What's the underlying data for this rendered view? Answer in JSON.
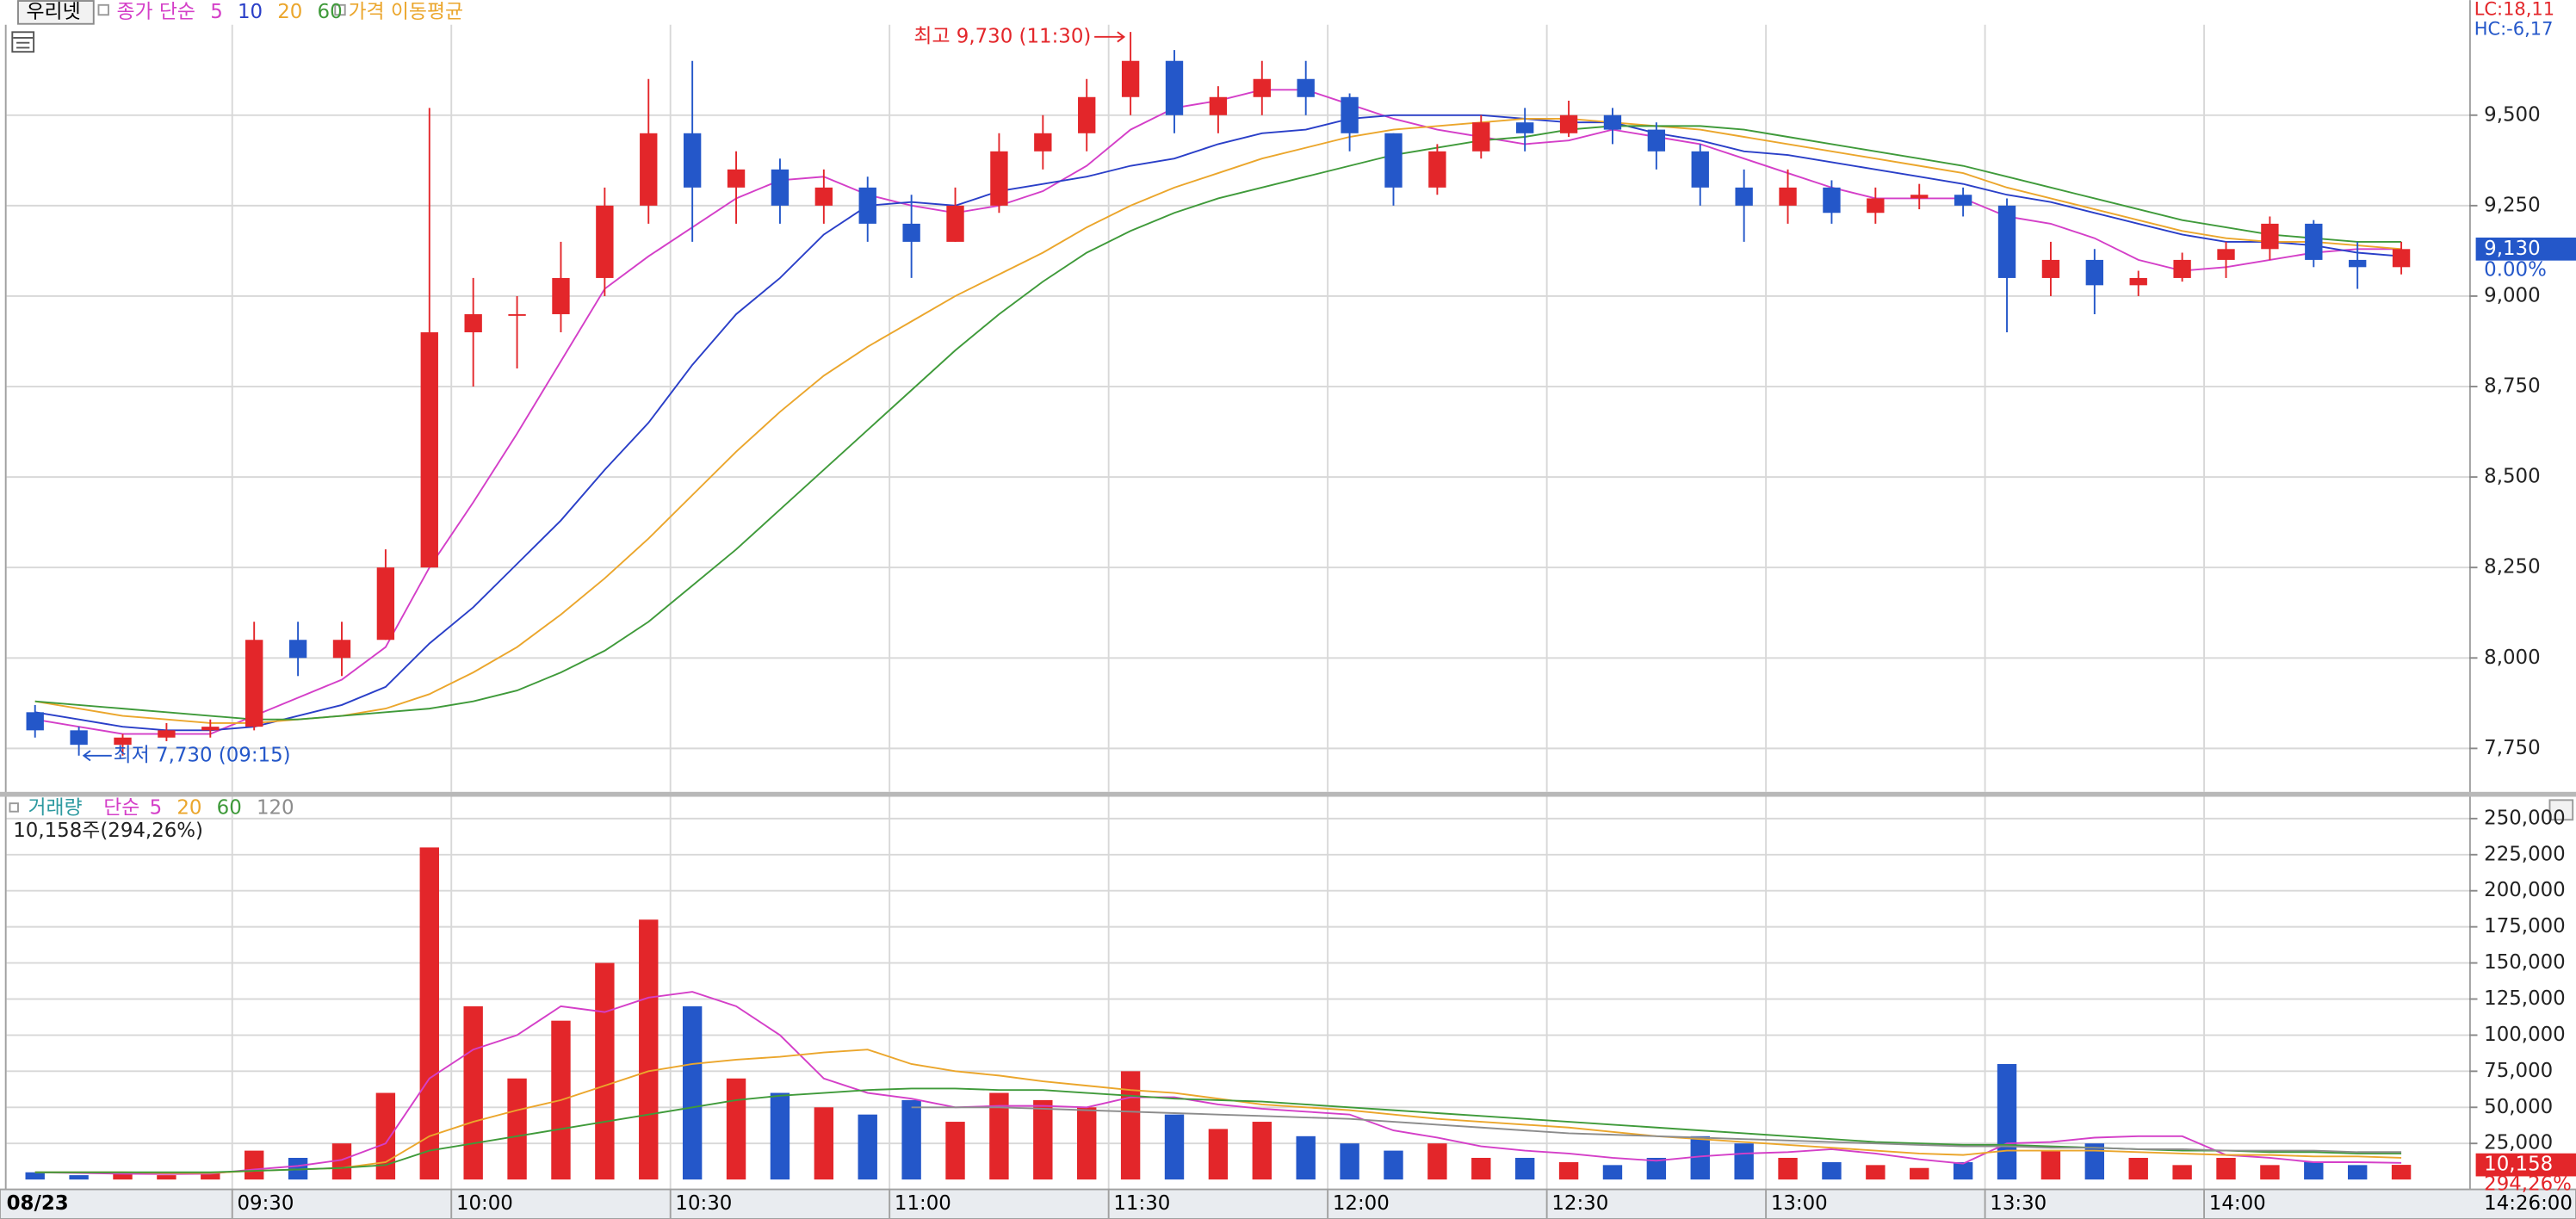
{
  "chart_data": [
    {
      "type": "candlestick",
      "title": "우리넷",
      "ma_label": "종가 단순",
      "ma_note": "가격 이동평균",
      "lc": "LC:18,11",
      "hc": "HC:-6,17",
      "x": [
        "09:00",
        "09:06",
        "09:12",
        "09:18",
        "09:24",
        "09:30",
        "09:36",
        "09:42",
        "09:48",
        "09:54",
        "10:00",
        "10:06",
        "10:12",
        "10:18",
        "10:24",
        "10:30",
        "10:36",
        "10:42",
        "10:48",
        "10:54",
        "11:00",
        "11:06",
        "11:12",
        "11:18",
        "11:24",
        "11:30",
        "11:36",
        "11:42",
        "11:48",
        "11:54",
        "12:00",
        "12:06",
        "12:12",
        "12:18",
        "12:24",
        "12:30",
        "12:36",
        "12:42",
        "12:48",
        "12:54",
        "13:00",
        "13:06",
        "13:12",
        "13:18",
        "13:24",
        "13:30",
        "13:36",
        "13:42",
        "13:48",
        "13:54",
        "14:00",
        "14:06",
        "14:12",
        "14:18",
        "14:24"
      ],
      "open": [
        7850,
        7800,
        7760,
        7780,
        7800,
        7810,
        8050,
        8000,
        8050,
        8250,
        8900,
        8950,
        8950,
        9050,
        9250,
        9450,
        9300,
        9350,
        9250,
        9300,
        9200,
        9150,
        9250,
        9400,
        9450,
        9550,
        9650,
        9500,
        9550,
        9600,
        9550,
        9450,
        9300,
        9400,
        9480,
        9450,
        9500,
        9460,
        9400,
        9300,
        9250,
        9300,
        9230,
        9270,
        9280,
        9250,
        9050,
        9100,
        9030,
        9050,
        9100,
        9130,
        9200,
        9100,
        9080
      ],
      "high": [
        7870,
        7810,
        7790,
        7820,
        7830,
        8100,
        8100,
        8100,
        8300,
        9520,
        9050,
        9000,
        9150,
        9300,
        9600,
        9650,
        9400,
        9380,
        9350,
        9330,
        9280,
        9300,
        9450,
        9500,
        9600,
        9730,
        9680,
        9580,
        9650,
        9650,
        9560,
        9450,
        9420,
        9500,
        9520,
        9540,
        9520,
        9480,
        9420,
        9350,
        9350,
        9320,
        9300,
        9310,
        9300,
        9270,
        9150,
        9130,
        9070,
        9120,
        9150,
        9220,
        9210,
        9150,
        9150
      ],
      "low": [
        7780,
        7730,
        7730,
        7770,
        7780,
        7800,
        7950,
        7950,
        8050,
        8250,
        8750,
        8800,
        8900,
        9000,
        9200,
        9150,
        9200,
        9200,
        9200,
        9150,
        9050,
        9150,
        9230,
        9350,
        9400,
        9500,
        9450,
        9450,
        9500,
        9500,
        9400,
        9250,
        9280,
        9380,
        9400,
        9440,
        9420,
        9350,
        9250,
        9150,
        9200,
        9200,
        9200,
        9240,
        9220,
        8900,
        9000,
        8950,
        9000,
        9040,
        9050,
        9100,
        9080,
        9020,
        9060
      ],
      "close": [
        7800,
        7760,
        7780,
        7800,
        7810,
        8050,
        8000,
        8050,
        8250,
        8900,
        8950,
        8950,
        9050,
        9250,
        9450,
        9300,
        9350,
        9250,
        9300,
        9200,
        9150,
        9250,
        9400,
        9450,
        9550,
        9650,
        9500,
        9550,
        9600,
        9550,
        9450,
        9300,
        9400,
        9480,
        9450,
        9500,
        9460,
        9400,
        9300,
        9250,
        9300,
        9230,
        9270,
        9280,
        9250,
        9050,
        9100,
        9030,
        9050,
        9100,
        9130,
        9200,
        9100,
        9080,
        9130
      ],
      "up_color": "#e3262a",
      "down_color": "#2457c9",
      "series": [
        {
          "name": "5",
          "color": "#d43fc8",
          "values": [
            7830,
            7810,
            7790,
            7790,
            7790,
            7840,
            7890,
            7940,
            8030,
            8250,
            8430,
            8620,
            8820,
            9020,
            9110,
            9190,
            9270,
            9320,
            9330,
            9280,
            9250,
            9230,
            9250,
            9290,
            9360,
            9460,
            9520,
            9540,
            9570,
            9570,
            9530,
            9490,
            9460,
            9440,
            9420,
            9430,
            9460,
            9440,
            9420,
            9380,
            9340,
            9300,
            9270,
            9270,
            9270,
            9220,
            9200,
            9160,
            9100,
            9070,
            9080,
            9100,
            9120,
            9130,
            9130
          ]
        },
        {
          "name": "10",
          "color": "#2a3fc8",
          "values": [
            7850,
            7830,
            7810,
            7800,
            7800,
            7810,
            7840,
            7870,
            7920,
            8040,
            8140,
            8260,
            8380,
            8520,
            8650,
            8810,
            8950,
            9050,
            9170,
            9250,
            9260,
            9250,
            9290,
            9310,
            9330,
            9360,
            9380,
            9420,
            9450,
            9460,
            9490,
            9500,
            9500,
            9500,
            9490,
            9480,
            9480,
            9450,
            9430,
            9400,
            9390,
            9370,
            9350,
            9330,
            9310,
            9280,
            9260,
            9230,
            9200,
            9170,
            9150,
            9150,
            9140,
            9120,
            9110
          ]
        },
        {
          "name": "20",
          "color": "#eba62c",
          "values": [
            7880,
            7860,
            7840,
            7830,
            7820,
            7820,
            7830,
            7840,
            7860,
            7900,
            7960,
            8030,
            8120,
            8220,
            8330,
            8450,
            8570,
            8680,
            8780,
            8860,
            8930,
            9000,
            9060,
            9120,
            9190,
            9250,
            9300,
            9340,
            9380,
            9410,
            9440,
            9460,
            9470,
            9480,
            9490,
            9490,
            9480,
            9470,
            9460,
            9440,
            9420,
            9400,
            9380,
            9360,
            9340,
            9300,
            9270,
            9240,
            9210,
            9180,
            9160,
            9150,
            9150,
            9140,
            9130
          ]
        },
        {
          "name": "60",
          "color": "#3f9a3a",
          "values": [
            7880,
            7870,
            7860,
            7850,
            7840,
            7830,
            7830,
            7840,
            7850,
            7860,
            7880,
            7910,
            7960,
            8020,
            8100,
            8200,
            8300,
            8410,
            8520,
            8630,
            8740,
            8850,
            8950,
            9040,
            9120,
            9180,
            9230,
            9270,
            9300,
            9330,
            9360,
            9390,
            9410,
            9430,
            9440,
            9460,
            9470,
            9470,
            9470,
            9460,
            9440,
            9420,
            9400,
            9380,
            9360,
            9330,
            9300,
            9270,
            9240,
            9210,
            9190,
            9170,
            9160,
            9150,
            9150
          ]
        }
      ],
      "ylim": [
        7630,
        9750
      ],
      "yticks": [
        {
          "value": 7750,
          "label": "7,750"
        },
        {
          "value": 8000,
          "label": "8,000"
        },
        {
          "value": 8250,
          "label": "8,250"
        },
        {
          "value": 8500,
          "label": "8,500"
        },
        {
          "value": 8750,
          "label": "8,750"
        },
        {
          "value": 9000,
          "label": "9,000"
        },
        {
          "value": 9250,
          "label": "9,250"
        },
        {
          "value": 9500,
          "label": "9,500"
        }
      ],
      "xticks": [
        "09:30",
        "10:00",
        "10:30",
        "11:00",
        "11:30",
        "12:00",
        "12:30",
        "13:00",
        "13:30",
        "14:00"
      ],
      "grid": true,
      "annotations": [
        {
          "text": "최고 9,730 (11:30)",
          "value": 9730,
          "kind": "high"
        },
        {
          "text": "최저 7,730 (09:15)",
          "value": 7730,
          "kind": "low"
        }
      ],
      "last": {
        "value": 9130,
        "label": "9,130",
        "change": "0.00%"
      }
    },
    {
      "type": "bar",
      "title": "거래량",
      "ma_label": "단순",
      "info": "10,158주(294,26%)",
      "values": [
        5000,
        3000,
        4000,
        3000,
        5000,
        20000,
        15000,
        25000,
        60000,
        230000,
        120000,
        70000,
        110000,
        150000,
        180000,
        120000,
        70000,
        60000,
        50000,
        45000,
        55000,
        40000,
        60000,
        55000,
        50000,
        75000,
        45000,
        35000,
        40000,
        30000,
        25000,
        20000,
        25000,
        15000,
        15000,
        12000,
        10000,
        15000,
        30000,
        25000,
        15000,
        12000,
        10000,
        8000,
        12000,
        80000,
        20000,
        25000,
        15000,
        10000,
        15000,
        10000,
        12000,
        10000,
        10158
      ],
      "series": [
        {
          "name": "5",
          "color": "#d43fc8",
          "values": [
            5000,
            4500,
            4000,
            3800,
            4000,
            7000,
            9400,
            13600,
            25000,
            70000,
            90000,
            100000,
            120000,
            116000,
            126000,
            130000,
            120000,
            100000,
            70000,
            60000,
            56000,
            50000,
            51000,
            51000,
            50000,
            57000,
            57000,
            52000,
            49000,
            47000,
            45000,
            34000,
            29000,
            23000,
            20000,
            18000,
            15000,
            13000,
            16000,
            18000,
            19000,
            21000,
            18000,
            14000,
            11000,
            25000,
            26000,
            29000,
            30000,
            30000,
            17000,
            15000,
            12000,
            12000,
            11500
          ]
        },
        {
          "name": "20",
          "color": "#eba62c",
          "values": [
            5000,
            5000,
            5000,
            4500,
            4500,
            6000,
            7000,
            8000,
            12000,
            30000,
            40000,
            48000,
            55000,
            65000,
            75000,
            80000,
            83000,
            85000,
            88000,
            90000,
            80000,
            75000,
            72000,
            68000,
            65000,
            62000,
            60000,
            56000,
            52000,
            50000,
            48000,
            45000,
            42000,
            40000,
            38000,
            36000,
            33000,
            30000,
            28000,
            26000,
            24000,
            22000,
            20000,
            18000,
            17000,
            20000,
            20000,
            20000,
            19000,
            18000,
            17000,
            17000,
            16000,
            16000,
            15000
          ]
        },
        {
          "name": "60",
          "color": "#3f9a3a",
          "values": [
            5000,
            5000,
            5000,
            5000,
            5000,
            6000,
            7000,
            8000,
            10000,
            20000,
            25000,
            30000,
            35000,
            40000,
            45000,
            50000,
            55000,
            58000,
            60000,
            62000,
            63000,
            63000,
            62000,
            62000,
            60000,
            58000,
            56000,
            55000,
            54000,
            52000,
            50000,
            48000,
            46000,
            44000,
            42000,
            40000,
            38000,
            36000,
            34000,
            32000,
            30000,
            28000,
            26000,
            25000,
            24000,
            24000,
            23000,
            22000,
            21000,
            20000,
            20000,
            19000,
            19000,
            18000,
            18000
          ]
        },
        {
          "name": "120",
          "color": "#8c8c8c",
          "values": [
            null,
            null,
            null,
            null,
            null,
            null,
            null,
            null,
            null,
            null,
            null,
            null,
            null,
            null,
            null,
            null,
            null,
            null,
            null,
            null,
            50000,
            50000,
            50000,
            49000,
            48000,
            47000,
            46000,
            45000,
            44000,
            43000,
            42000,
            40000,
            38000,
            36000,
            34000,
            32000,
            31000,
            30000,
            29000,
            28000,
            27000,
            26000,
            25000,
            24000,
            23000,
            23000,
            22000,
            22000,
            21000,
            21000,
            20000,
            20000,
            20000,
            19000,
            19000
          ]
        }
      ],
      "ylim": [
        0,
        256000
      ],
      "yticks": [
        {
          "value": 25000,
          "label": "25,000"
        },
        {
          "value": 50000,
          "label": "50,000"
        },
        {
          "value": 75000,
          "label": "75,000"
        },
        {
          "value": 100000,
          "label": "100,000"
        },
        {
          "value": 125000,
          "label": "125,000"
        },
        {
          "value": 150000,
          "label": "150,000"
        },
        {
          "value": 175000,
          "label": "175,000"
        },
        {
          "value": 200000,
          "label": "200,000"
        },
        {
          "value": 225000,
          "label": "225,000"
        },
        {
          "value": 250000,
          "label": "250,000"
        }
      ],
      "last": {
        "value": 10158,
        "label": "10,158",
        "change": "294,26%"
      },
      "date": "08/23",
      "time": "14:26:00"
    }
  ]
}
